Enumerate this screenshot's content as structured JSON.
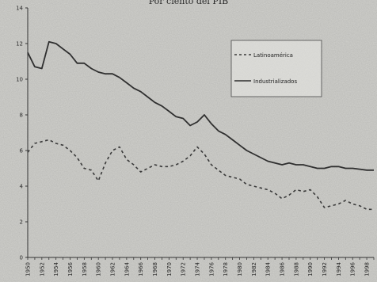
{
  "chart_data": {
    "type": "line",
    "title": "Por ciento del PIB",
    "xlabel": "",
    "ylabel": "",
    "ylim": [
      0,
      14
    ],
    "yticks": [
      0,
      2,
      4,
      6,
      8,
      10,
      12,
      14
    ],
    "grid": false,
    "legend_position": "top-right",
    "x": [
      1950,
      1951,
      1952,
      1953,
      1954,
      1955,
      1956,
      1957,
      1958,
      1959,
      1960,
      1961,
      1962,
      1963,
      1964,
      1965,
      1966,
      1967,
      1968,
      1969,
      1970,
      1971,
      1972,
      1973,
      1974,
      1975,
      1976,
      1977,
      1978,
      1979,
      1980,
      1981,
      1982,
      1983,
      1984,
      1985,
      1986,
      1987,
      1988,
      1989,
      1990,
      1991,
      1992,
      1993,
      1994,
      1995,
      1996,
      1997,
      1998,
      1999
    ],
    "xtick_labels": [
      "1950",
      "1952",
      "1954",
      "1956",
      "1958",
      "1960",
      "1962",
      "1964",
      "1966",
      "1968",
      "1970",
      "1972",
      "1974",
      "1976",
      "1978",
      "1980",
      "1982",
      "1984",
      "1986",
      "1988",
      "1990",
      "1992",
      "1994",
      "1996",
      "1998"
    ],
    "series": [
      {
        "name": "Latinoamérica",
        "style": "dashed",
        "color": "#3a3a3a",
        "values": [
          5.9,
          6.4,
          6.5,
          6.6,
          6.4,
          6.3,
          6.0,
          5.6,
          5.0,
          4.9,
          4.3,
          5.3,
          6.0,
          6.2,
          5.5,
          5.2,
          4.8,
          5.0,
          5.2,
          5.1,
          5.1,
          5.2,
          5.4,
          5.7,
          6.2,
          5.8,
          5.2,
          4.9,
          4.6,
          4.5,
          4.4,
          4.1,
          4.0,
          3.9,
          3.8,
          3.6,
          3.3,
          3.5,
          3.8,
          3.7,
          3.8,
          3.4,
          2.8,
          2.9,
          3.0,
          3.2,
          3.0,
          2.9,
          2.7,
          2.7
        ]
      },
      {
        "name": "Industrializados",
        "style": "solid",
        "color": "#2f2f2f",
        "values": [
          11.5,
          10.7,
          10.6,
          12.1,
          12.0,
          11.7,
          11.4,
          10.9,
          10.9,
          10.6,
          10.4,
          10.3,
          10.3,
          10.1,
          9.8,
          9.5,
          9.3,
          9.0,
          8.7,
          8.5,
          8.2,
          7.9,
          7.8,
          7.4,
          7.6,
          8.0,
          7.5,
          7.1,
          6.9,
          6.6,
          6.3,
          6.0,
          5.8,
          5.6,
          5.4,
          5.3,
          5.2,
          5.3,
          5.2,
          5.2,
          5.1,
          5.0,
          5.0,
          5.1,
          5.1,
          5.0,
          5.0,
          4.95,
          4.9,
          4.9
        ]
      }
    ]
  }
}
